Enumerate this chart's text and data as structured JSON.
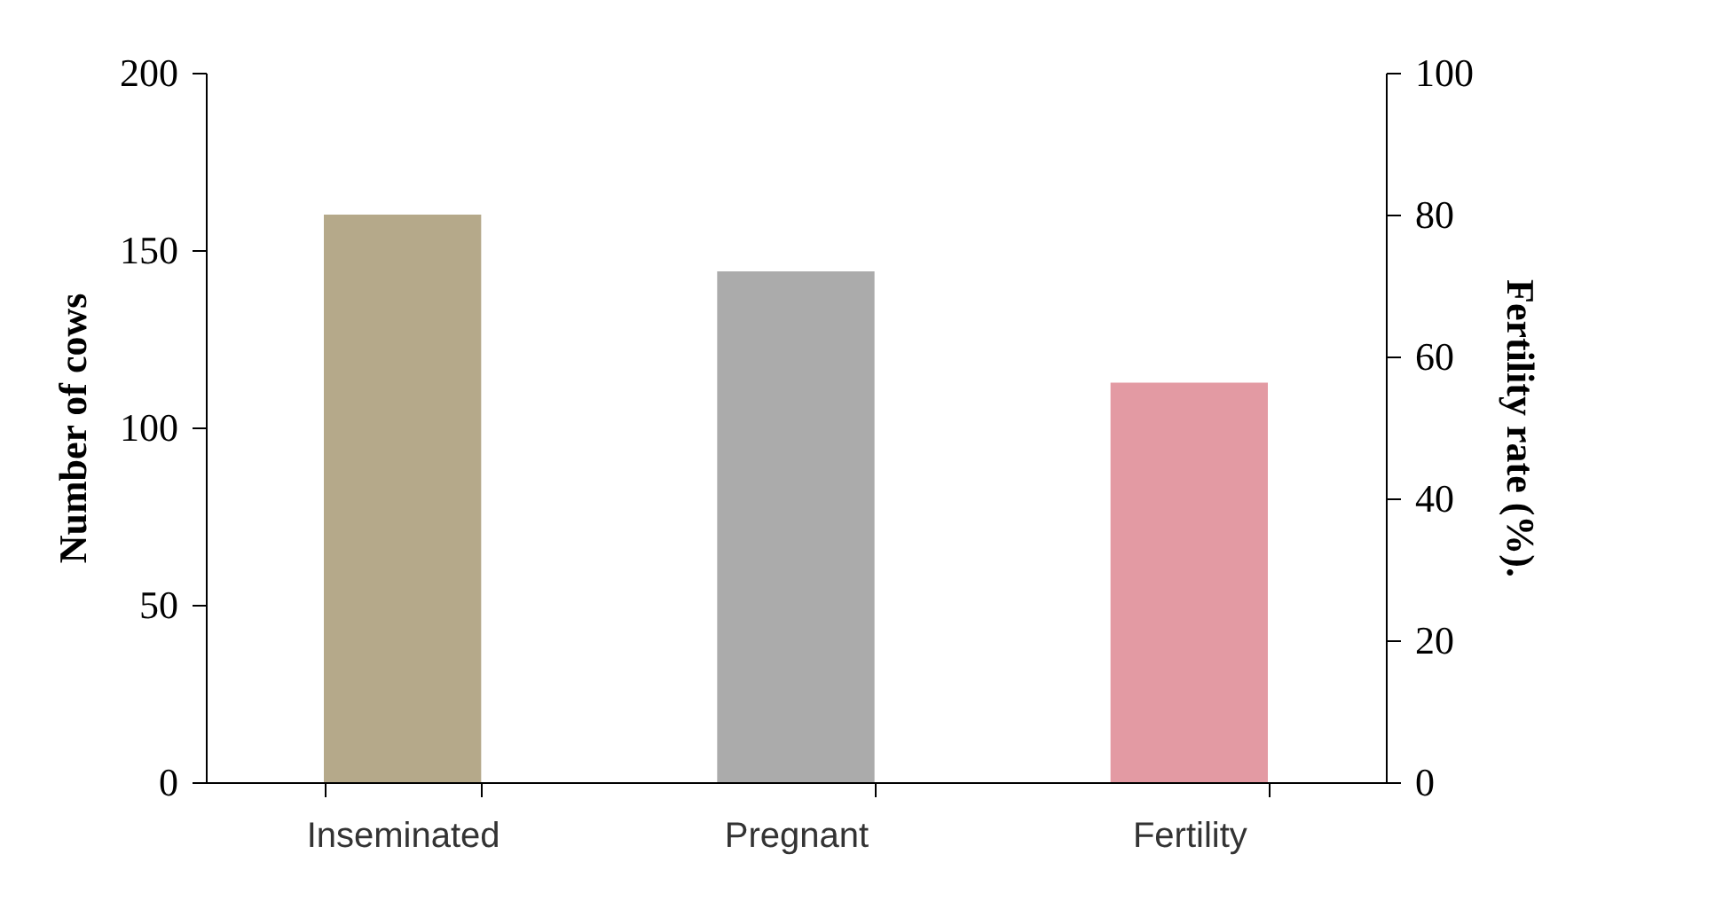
{
  "chart_data": {
    "type": "bar",
    "categories": [
      "Inseminated",
      "Pregnant",
      "Fertility"
    ],
    "ylabel": "Number of cows",
    "y2label": "Fertility rate (%).",
    "ylim": [
      0,
      200
    ],
    "yticks": [
      0,
      50,
      100,
      150,
      200
    ],
    "y2lim": [
      0,
      100
    ],
    "y2ticks": [
      0,
      20,
      40,
      60,
      80,
      100
    ],
    "grid": false,
    "series": [
      {
        "colors": [
          "#b5a98a",
          "#ababab",
          null
        ],
        "values": [
          160,
          144,
          null
        ]
      },
      {
        "axis": "y2",
        "colors": [
          null,
          null,
          "#e39aa3"
        ],
        "values": [
          null,
          null,
          56.3
        ]
      }
    ]
  }
}
